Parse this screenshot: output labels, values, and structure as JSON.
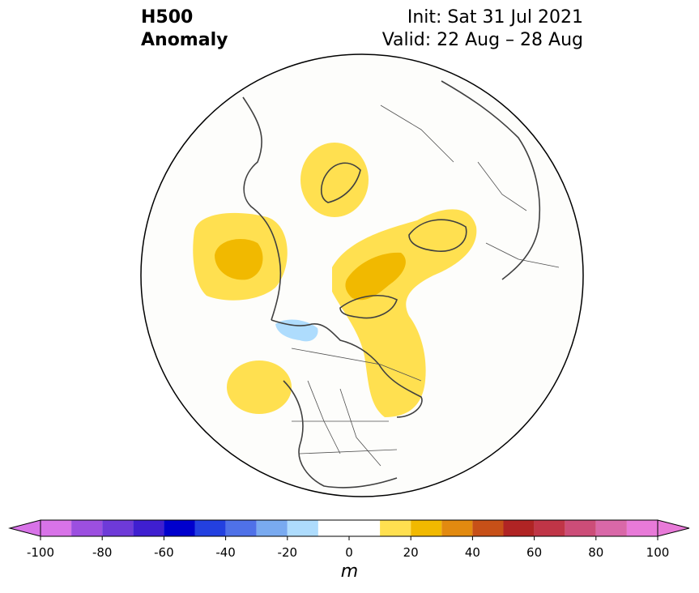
{
  "title": {
    "left_line1": "H500",
    "left_line2": "Anomaly",
    "right_line1": "Init: Sat 31 Jul 2021",
    "right_line2": "Valid: 22 Aug – 28 Aug"
  },
  "map": {
    "projection": "north-polar-stereographic",
    "variable": "500 hPa geopotential height anomaly",
    "anomaly_regions": [
      {
        "region": "Scandinavia / northern Europe",
        "sign": "positive",
        "max_level": "10-20"
      },
      {
        "region": "North Pacific / Bering Sea",
        "sign": "positive",
        "max_level": "20-30"
      },
      {
        "region": "Greenland / Baffin Bay / northeastern Canada",
        "sign": "positive",
        "max_level": "20-30"
      },
      {
        "region": "Central Siberia",
        "sign": "positive",
        "max_level": "10-20"
      },
      {
        "region": "Northeast Pacific off western North America",
        "sign": "positive",
        "max_level": "10-20"
      },
      {
        "region": "Pacific Northwest / western Canada",
        "sign": "negative",
        "max_level": "-20 to -10"
      }
    ]
  },
  "colorbar": {
    "unit_label": "m",
    "tick_labels": [
      "-100",
      "-80",
      "-60",
      "-40",
      "-20",
      "0",
      "20",
      "40",
      "60",
      "80",
      "100"
    ],
    "levels": [
      -100,
      -90,
      -80,
      -70,
      -60,
      -50,
      -40,
      -30,
      -20,
      -10,
      10,
      20,
      30,
      40,
      50,
      60,
      70,
      80,
      90,
      100
    ],
    "colors": [
      "#d873e8",
      "#9c4fe0",
      "#6e3ad8",
      "#3f1fd0",
      "#0000cd",
      "#2340e0",
      "#4f71e8",
      "#79aaf0",
      "#aedcfd",
      "#ffffff",
      "#ffe050",
      "#f1b900",
      "#e28a10",
      "#c75018",
      "#b02424",
      "#c03547",
      "#cc4d78",
      "#d968a8",
      "#e87ad8"
    ],
    "extend_low_color": "#d873e8",
    "extend_high_color": "#e87ad8"
  }
}
